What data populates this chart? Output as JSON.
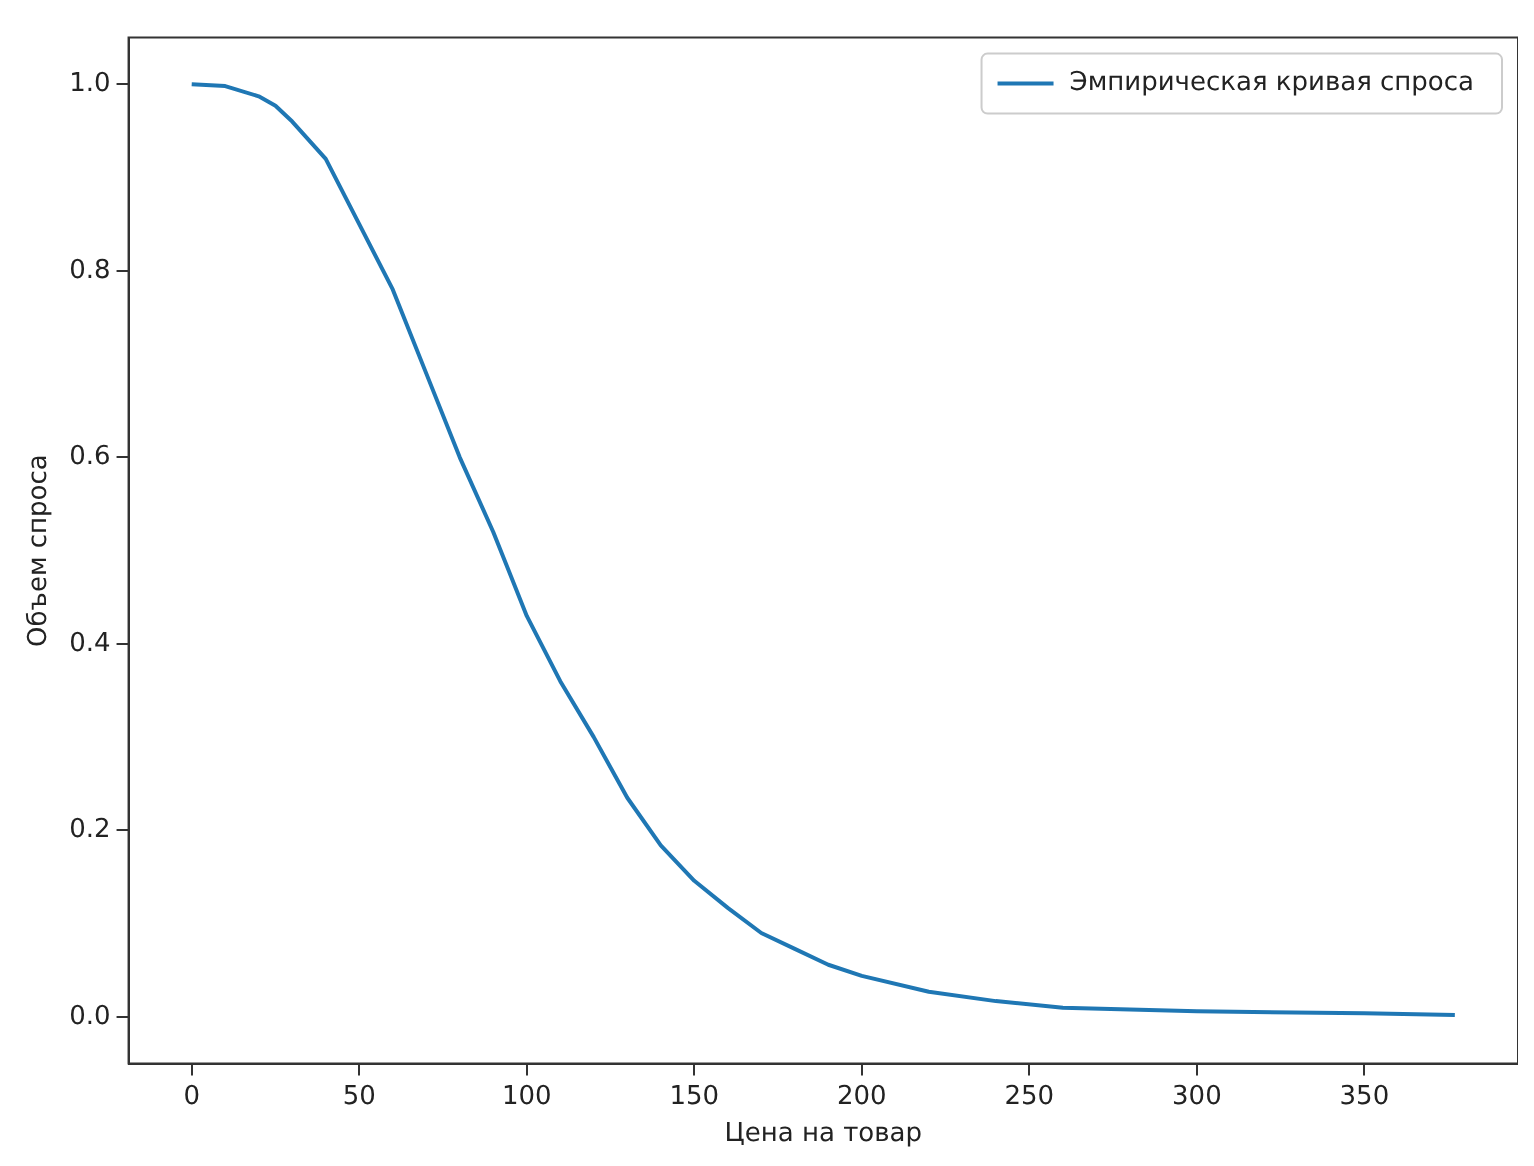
{
  "chart_data": {
    "type": "line",
    "xlabel": "Цена на товар",
    "ylabel": "Объем спроса",
    "legend": "top right",
    "grid": false,
    "xlim": [
      -18.85,
      395.85
    ],
    "ylim": [
      -0.05,
      1.05
    ],
    "xticks": [
      0,
      50,
      100,
      150,
      200,
      250,
      300,
      350
    ],
    "yticks": [
      {
        "value": 0,
        "label": "0.0"
      },
      0.2,
      0.4,
      0.6,
      0.8,
      {
        "value": 1,
        "label": "1.0"
      }
    ],
    "series": [
      {
        "name": "Эмпирическая кривая спроса",
        "color": "#1f77b4",
        "x": [
          0,
          10,
          20,
          25,
          30,
          40,
          50,
          60,
          70,
          80,
          90,
          100,
          110,
          120,
          130,
          140,
          150,
          160,
          170,
          180,
          190,
          200,
          220,
          240,
          260,
          300,
          350,
          377
        ],
        "values": [
          1.0,
          0.998,
          0.987,
          0.977,
          0.96,
          0.92,
          0.85,
          0.78,
          0.69,
          0.6,
          0.52,
          0.43,
          0.36,
          0.3,
          0.235,
          0.184,
          0.146,
          0.117,
          0.09,
          0.073,
          0.056,
          0.044,
          0.027,
          0.017,
          0.01,
          0.006,
          0.004,
          0.002
        ]
      }
    ]
  }
}
